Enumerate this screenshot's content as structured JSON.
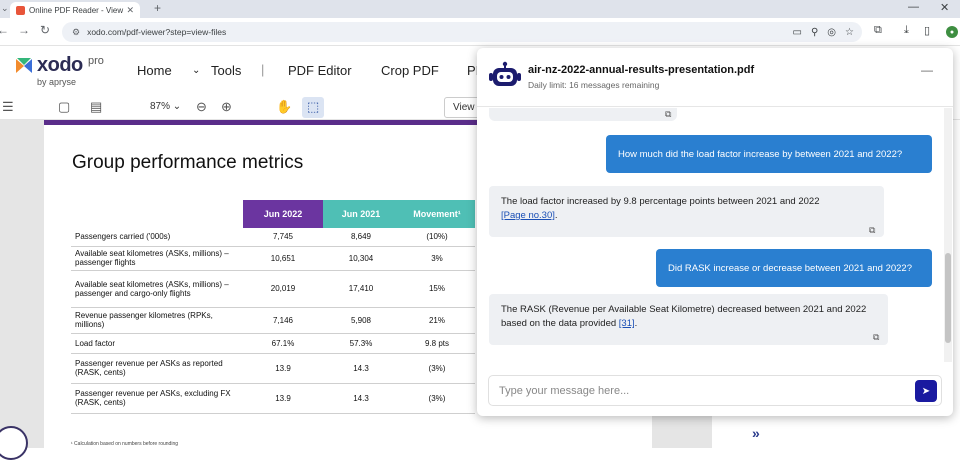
{
  "browser": {
    "tab_title": "Online PDF Reader - View PDF...",
    "url": "xodo.com/pdf-viewer?step=view-files",
    "new_tab": "+"
  },
  "app": {
    "logo_word": "xodo",
    "logo_pro": "pro",
    "logo_by": "by apryse",
    "menu": [
      "Home",
      "Tools",
      "PDF Editor",
      "Crop PDF",
      "PI"
    ],
    "zoom": "87%",
    "view_label": "View"
  },
  "document": {
    "title": "Group performance metrics",
    "headers": [
      "Jun 2022",
      "Jun 2021",
      "Movement¹"
    ],
    "rows": [
      {
        "label": "Passengers carried ('000s)",
        "a": "7,745",
        "b": "8,649",
        "c": "(10%)"
      },
      {
        "label": "Available seat kilometres (ASKs, millions) – passenger flights",
        "a": "10,651",
        "b": "10,304",
        "c": "3%"
      },
      {
        "label": "Available seat kilometres (ASKs, millions) – passenger and cargo-only flights",
        "a": "20,019",
        "b": "17,410",
        "c": "15%"
      },
      {
        "label": "Revenue passenger kilometres (RPKs, millions)",
        "a": "7,146",
        "b": "5,908",
        "c": "21%"
      },
      {
        "label": "Load factor",
        "a": "67.1%",
        "b": "57.3%",
        "c": "9.8 pts"
      },
      {
        "label": "Passenger revenue per ASKs as reported (RASK, cents)",
        "a": "13.9",
        "b": "14.3",
        "c": "(3%)"
      },
      {
        "label": "Passenger revenue per ASKs, excluding FX (RASK, cents)",
        "a": "13.9",
        "b": "14.3",
        "c": "(3%)"
      }
    ],
    "footnote": "¹ Calculation based on numbers before rounding"
  },
  "chat": {
    "title": "air-nz-2022-annual-results-presentation.pdf",
    "subtitle": "Daily limit: 16 messages remaining",
    "messages": [
      {
        "role": "user",
        "text": "How much did the load factor increase by between 2021 and 2022?"
      },
      {
        "role": "bot",
        "text": "The load factor increased by 9.8 percentage points between 2021 and 2022",
        "ref": "[Page no.30]",
        "tail": "."
      },
      {
        "role": "user",
        "text": "Did RASK increase or decrease between 2021 and 2022?"
      },
      {
        "role": "bot",
        "text": "The RASK (Revenue per Available Seat Kilometre) decreased between 2021 and 2022 based on the data provided",
        "ref": "[31]",
        "tail": "."
      }
    ],
    "input_placeholder": "Type your message here..."
  },
  "colors": {
    "accent_purple": "#6b35a0",
    "accent_teal": "#4fbfb5",
    "user_bubble": "#2a7fd0",
    "send_button": "#1a1aa0"
  },
  "icons": [
    "favicon-icon",
    "tab-close-icon",
    "back-icon",
    "forward-icon",
    "reload-icon",
    "site-settings-icon",
    "cast-icon",
    "zoom-icon",
    "eye-off-icon",
    "star-icon",
    "extensions-icon",
    "download-icon",
    "sidebar-icon",
    "profile-avatar",
    "hamburger-icon",
    "panel-icon",
    "file-icon",
    "chevron-down-icon",
    "zoom-out-icon",
    "zoom-in-icon",
    "hand-icon",
    "selection-icon",
    "robot-icon",
    "minimize-icon",
    "copy-icon",
    "send-icon",
    "double-chevron-right-icon"
  ]
}
